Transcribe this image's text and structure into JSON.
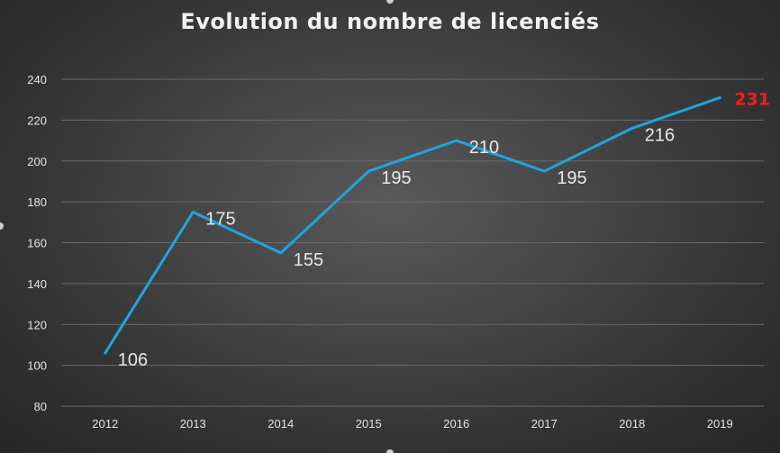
{
  "chart_data": {
    "type": "line",
    "title": "Evolution du nombre de licenciés",
    "xlabel": "",
    "ylabel": "",
    "categories": [
      "2012",
      "2013",
      "2014",
      "2015",
      "2016",
      "2017",
      "2018",
      "2019"
    ],
    "series": [
      {
        "values": [
          106,
          175,
          155,
          195,
          210,
          195,
          216,
          231
        ]
      }
    ],
    "data_labels": [
      "106",
      "175",
      "155",
      "195",
      "210",
      "195",
      "216",
      "231"
    ],
    "ylim": [
      80,
      240
    ],
    "yticks": [
      "80",
      "100",
      "120",
      "140",
      "160",
      "180",
      "200",
      "220",
      "240"
    ],
    "grid": true,
    "legend": "none",
    "colors": {
      "line": "#1fa5e0",
      "last_label": "#ff1a1a",
      "text": "#e6e6e6",
      "gridline": "#6a6a6a"
    }
  }
}
